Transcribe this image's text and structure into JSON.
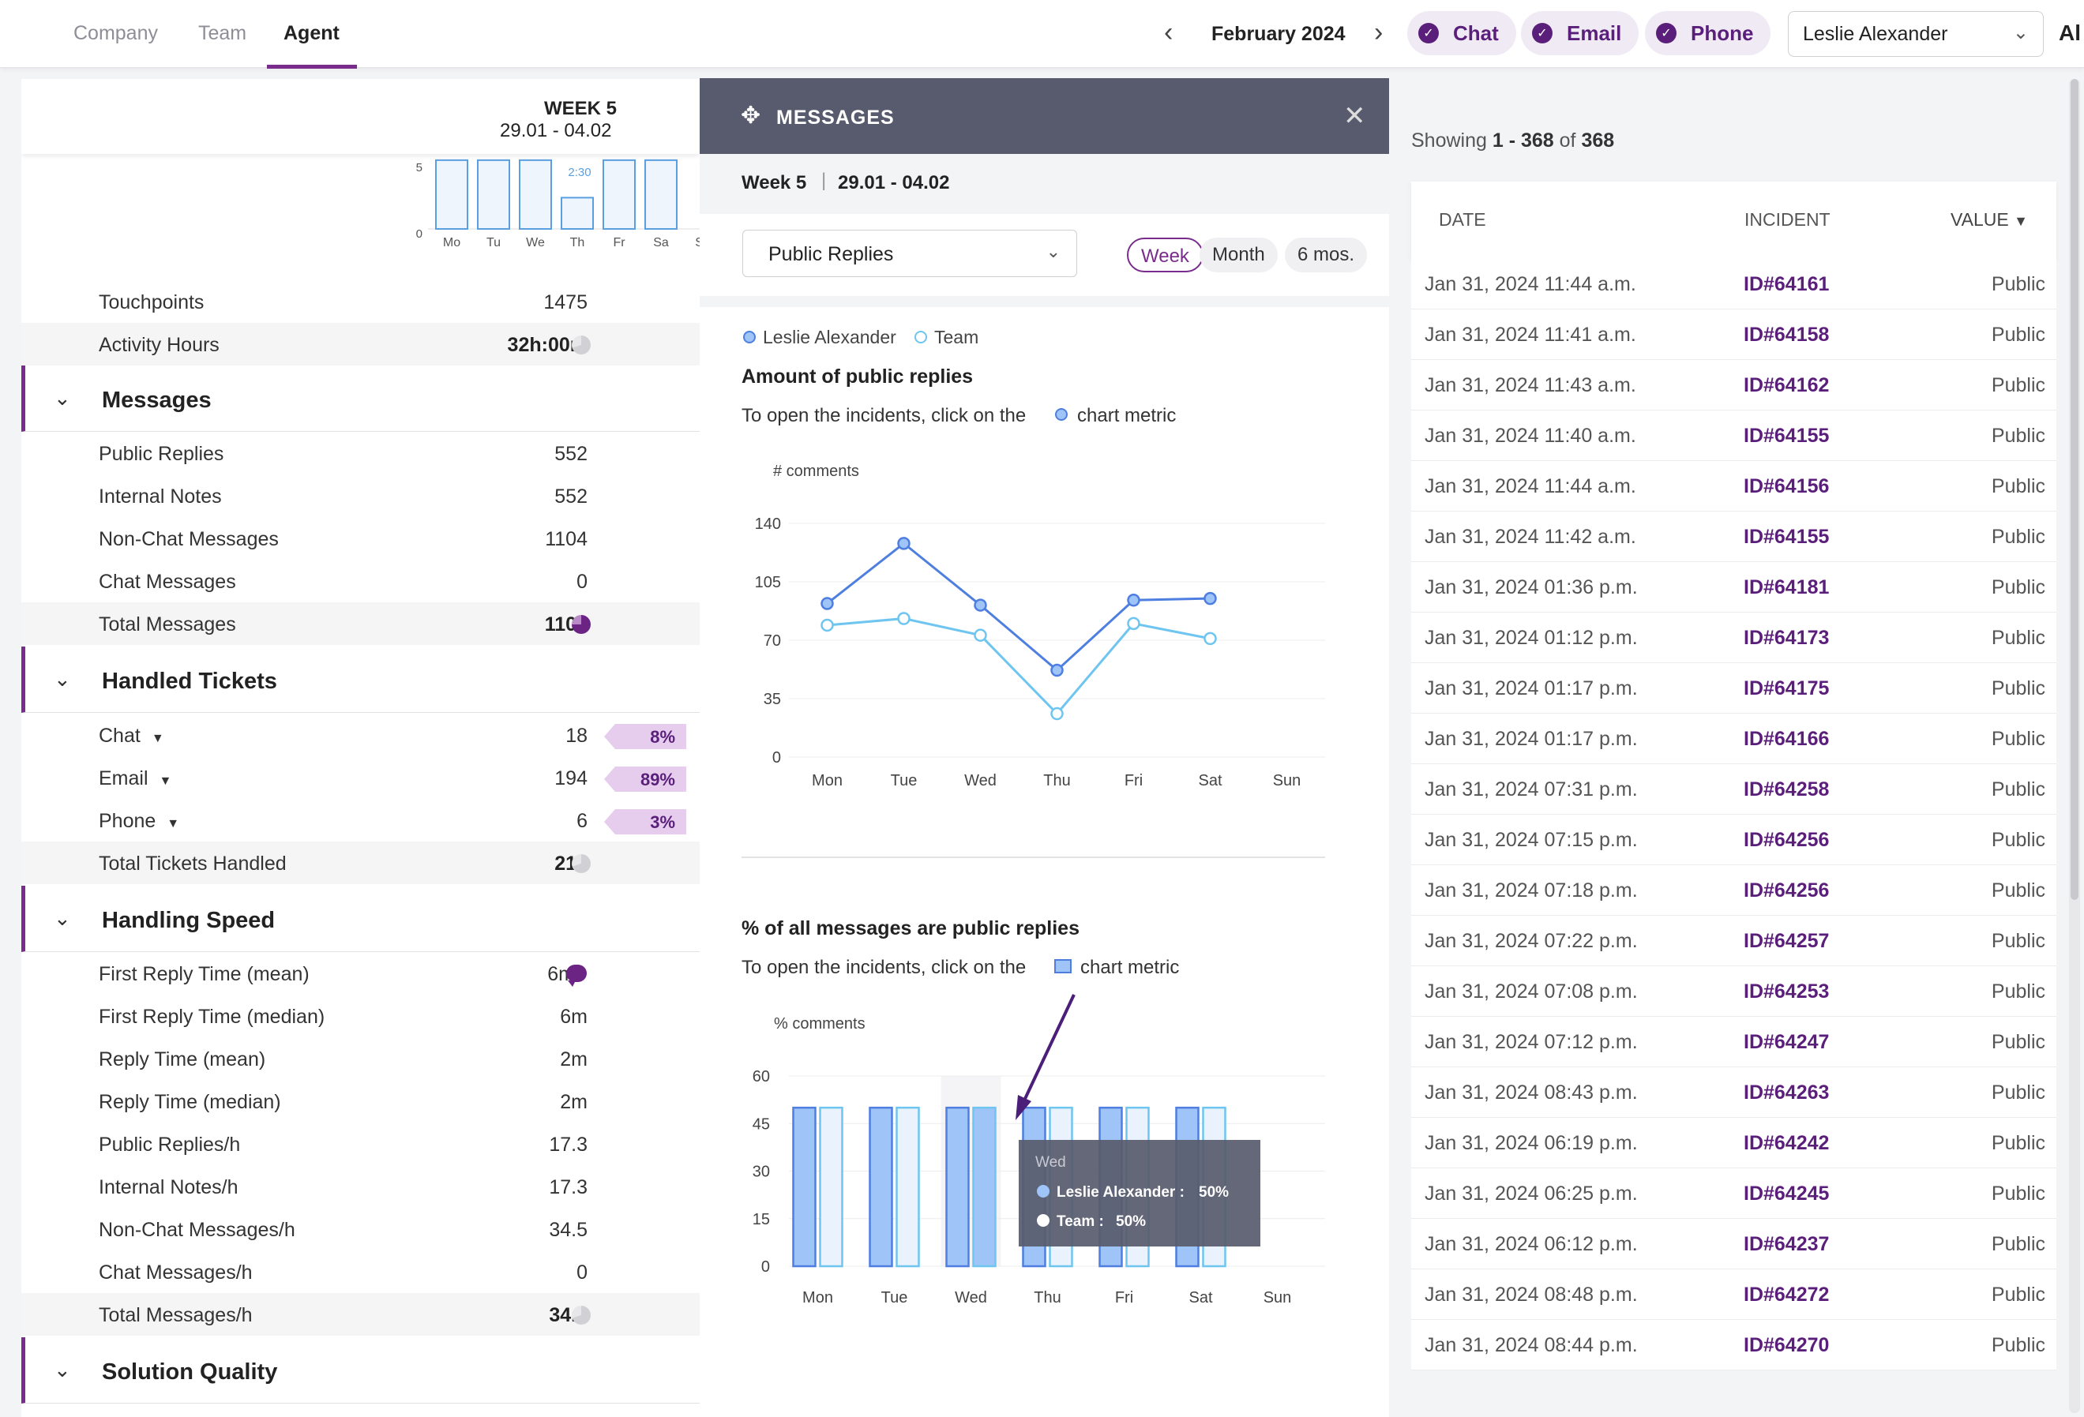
{
  "topbar": {
    "tabs": [
      {
        "label": "Company"
      },
      {
        "label": "Team"
      },
      {
        "label": "Agent"
      }
    ],
    "month": "February 2024",
    "channels": [
      {
        "label": "Chat"
      },
      {
        "label": "Email"
      },
      {
        "label": "Phone"
      }
    ],
    "agent": "Leslie Alexander",
    "all_label": "Al"
  },
  "left": {
    "week_title": "WEEK 5",
    "week_range": "29.01 - 04.02",
    "mini_chart": {
      "y_ticks": [
        "5",
        "0"
      ],
      "days": [
        "Mo",
        "Tu",
        "We",
        "Th",
        "Fr",
        "Sa",
        "Su"
      ],
      "values": [
        6.6,
        6.6,
        6.6,
        3.0,
        6.6,
        6.6,
        0
      ],
      "label": "2:30"
    },
    "top_rows": [
      {
        "label": "Touchpoints",
        "value": "1475"
      },
      {
        "label": "Activity Hours",
        "value": "32h:00m"
      }
    ],
    "sections": {
      "messages": {
        "title": "Messages",
        "rows": [
          {
            "label": "Public Replies",
            "value": "552"
          },
          {
            "label": "Internal Notes",
            "value": "552"
          },
          {
            "label": "Non-Chat Messages",
            "value": "1104"
          },
          {
            "label": "Chat Messages",
            "value": "0"
          }
        ],
        "total": {
          "label": "Total Messages",
          "value": "1104"
        }
      },
      "tickets": {
        "title": "Handled Tickets",
        "rows": [
          {
            "label": "Chat",
            "value": "18",
            "pct": "8%"
          },
          {
            "label": "Email",
            "value": "194",
            "pct": "89%"
          },
          {
            "label": "Phone",
            "value": "6",
            "pct": "3%"
          }
        ],
        "total": {
          "label": "Total Tickets Handled",
          "value": "218"
        }
      },
      "speed": {
        "title": "Handling Speed",
        "rows": [
          {
            "label": "First Reply Time (mean)",
            "value": "6m"
          },
          {
            "label": "First Reply Time (median)",
            "value": "6m"
          },
          {
            "label": "Reply Time (mean)",
            "value": "2m"
          },
          {
            "label": "Reply Time (median)",
            "value": "2m"
          },
          {
            "label": "Public Replies/h",
            "value": "17.3"
          },
          {
            "label": "Internal Notes/h",
            "value": "17.3"
          },
          {
            "label": "Non-Chat Messages/h",
            "value": "34.5"
          },
          {
            "label": "Chat Messages/h",
            "value": "0"
          }
        ],
        "total": {
          "label": "Total Messages/h",
          "value": "34.5"
        }
      },
      "quality": {
        "title": "Solution Quality"
      }
    }
  },
  "modal": {
    "title": "MESSAGES",
    "week": "Week 5",
    "range": "29.01 - 04.02",
    "dropdown": "Public Replies",
    "periods": [
      {
        "label": "Week"
      },
      {
        "label": "Month"
      },
      {
        "label": "6 mos."
      }
    ],
    "legend": {
      "a": "Leslie Alexander",
      "b": "Team"
    },
    "chart1_title": "Amount of public replies",
    "chart1_hint_pre": "To open the incidents, click on the",
    "chart1_hint_post": "chart metric",
    "chart2_title": "% of all messages are public replies",
    "chart2_hint_pre": "To open the incidents, click on the",
    "chart2_hint_post": "chart metric",
    "tooltip": {
      "day": "Wed",
      "a": "Leslie Alexander :",
      "a_val": "50%",
      "b": "Team :",
      "b_val": "50%"
    }
  },
  "colors": {
    "accent": "#7a2c8c",
    "series_agent": "#4e7fe0",
    "series_team": "#6ec5f0",
    "bar_agent": "#9ec4f8",
    "bar_team": "#eaf3fd"
  },
  "chart_data": [
    {
      "type": "line",
      "title": "Amount of public replies",
      "ylabel": "# comments",
      "categories": [
        "Mon",
        "Tue",
        "Wed",
        "Thu",
        "Fri",
        "Sat",
        "Sun"
      ],
      "y_ticks": [
        0,
        35,
        70,
        105,
        140
      ],
      "ylim": [
        0,
        140
      ],
      "series": [
        {
          "name": "Leslie Alexander",
          "values": [
            92,
            128,
            91,
            52,
            94,
            95,
            null
          ]
        },
        {
          "name": "Team",
          "values": [
            79,
            83,
            73,
            26,
            80,
            71,
            null
          ]
        }
      ]
    },
    {
      "type": "bar",
      "title": "% of all messages are public replies",
      "ylabel": "% comments",
      "categories": [
        "Mon",
        "Tue",
        "Wed",
        "Thu",
        "Fri",
        "Sat",
        "Sun"
      ],
      "y_ticks": [
        0,
        15,
        30,
        45,
        60
      ],
      "ylim": [
        0,
        60
      ],
      "series": [
        {
          "name": "Leslie Alexander",
          "values": [
            50,
            50,
            50,
            50,
            50,
            50,
            0
          ]
        },
        {
          "name": "Team",
          "values": [
            50,
            50,
            50,
            50,
            50,
            50,
            0
          ]
        }
      ]
    }
  ],
  "table": {
    "showing_prefix": "Showing",
    "showing_range": "1 - 368",
    "showing_of": "of",
    "showing_total": "368",
    "headers": {
      "date": "DATE",
      "incident": "INCIDENT",
      "value": "VALUE"
    },
    "rows": [
      {
        "date": "Jan 31, 2024 11:44 a.m.",
        "incident": "ID#64161",
        "value": "Public"
      },
      {
        "date": "Jan 31, 2024 11:41 a.m.",
        "incident": "ID#64158",
        "value": "Public"
      },
      {
        "date": "Jan 31, 2024 11:43 a.m.",
        "incident": "ID#64162",
        "value": "Public"
      },
      {
        "date": "Jan 31, 2024 11:40 a.m.",
        "incident": "ID#64155",
        "value": "Public"
      },
      {
        "date": "Jan 31, 2024 11:44 a.m.",
        "incident": "ID#64156",
        "value": "Public"
      },
      {
        "date": "Jan 31, 2024 11:42 a.m.",
        "incident": "ID#64155",
        "value": "Public"
      },
      {
        "date": "Jan 31, 2024 01:36 p.m.",
        "incident": "ID#64181",
        "value": "Public"
      },
      {
        "date": "Jan 31, 2024 01:12 p.m.",
        "incident": "ID#64173",
        "value": "Public"
      },
      {
        "date": "Jan 31, 2024 01:17 p.m.",
        "incident": "ID#64175",
        "value": "Public"
      },
      {
        "date": "Jan 31, 2024 01:17 p.m.",
        "incident": "ID#64166",
        "value": "Public"
      },
      {
        "date": "Jan 31, 2024 07:31 p.m.",
        "incident": "ID#64258",
        "value": "Public"
      },
      {
        "date": "Jan 31, 2024 07:15 p.m.",
        "incident": "ID#64256",
        "value": "Public"
      },
      {
        "date": "Jan 31, 2024 07:18 p.m.",
        "incident": "ID#64256",
        "value": "Public"
      },
      {
        "date": "Jan 31, 2024 07:22 p.m.",
        "incident": "ID#64257",
        "value": "Public"
      },
      {
        "date": "Jan 31, 2024 07:08 p.m.",
        "incident": "ID#64253",
        "value": "Public"
      },
      {
        "date": "Jan 31, 2024 07:12 p.m.",
        "incident": "ID#64247",
        "value": "Public"
      },
      {
        "date": "Jan 31, 2024 08:43 p.m.",
        "incident": "ID#64263",
        "value": "Public"
      },
      {
        "date": "Jan 31, 2024 06:19 p.m.",
        "incident": "ID#64242",
        "value": "Public"
      },
      {
        "date": "Jan 31, 2024 06:25 p.m.",
        "incident": "ID#64245",
        "value": "Public"
      },
      {
        "date": "Jan 31, 2024 06:12 p.m.",
        "incident": "ID#64237",
        "value": "Public"
      },
      {
        "date": "Jan 31, 2024 08:48 p.m.",
        "incident": "ID#64272",
        "value": "Public"
      },
      {
        "date": "Jan 31, 2024 08:44 p.m.",
        "incident": "ID#64270",
        "value": "Public"
      }
    ]
  }
}
